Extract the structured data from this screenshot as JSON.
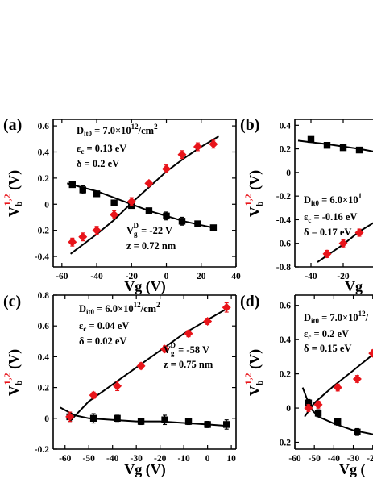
{
  "chart_data": [
    {
      "panel": "(a)",
      "type": "scatter",
      "xlabel": "Vg (V)",
      "ylabel": "V_b^{1,2} (V)",
      "xlim": [
        -65,
        40
      ],
      "ylim": [
        -0.48,
        0.65
      ],
      "xticks": [
        -60,
        -40,
        -20,
        0,
        20,
        40
      ],
      "yticks": [
        -0.4,
        -0.2,
        0.0,
        0.2,
        0.4,
        0.6
      ],
      "annotations": [
        {
          "text": "D_it0 = 7.0×10^12/cm^2"
        },
        {
          "text": "ε_c = 0.13 eV"
        },
        {
          "text": "δ = 0.2 eV"
        },
        {
          "text": "V_g^D = -22 V"
        },
        {
          "text": "z = 0.72 nm"
        }
      ],
      "series": [
        {
          "marker": "square",
          "color": "#000000",
          "x": [
            -54,
            -48,
            -40,
            -30,
            -20,
            -10,
            0,
            9,
            18,
            27
          ],
          "y": [
            0.15,
            0.11,
            0.08,
            0.01,
            -0.01,
            -0.05,
            -0.09,
            -0.13,
            -0.15,
            -0.18
          ],
          "err": [
            0.02,
            0.03,
            0.02,
            0.02,
            0.02,
            0.02,
            0.03,
            0.03,
            0.02,
            0.02
          ]
        },
        {
          "marker": "diamond",
          "color": "#e8141a",
          "x": [
            -54,
            -48,
            -40,
            -30,
            -20,
            -10,
            0,
            9,
            18,
            27
          ],
          "y": [
            -0.29,
            -0.25,
            -0.2,
            -0.08,
            0.02,
            0.16,
            0.27,
            0.38,
            0.44,
            0.46
          ],
          "err": [
            0.03,
            0.03,
            0.03,
            0.03,
            0.03,
            0.02,
            0.03,
            0.03,
            0.03,
            0.03
          ]
        }
      ],
      "fits": [
        {
          "x": [
            -57,
            -40,
            -30,
            -20,
            -10,
            0,
            10,
            20,
            27
          ],
          "y": [
            0.16,
            0.1,
            0.05,
            0.0,
            -0.05,
            -0.09,
            -0.13,
            -0.16,
            -0.18
          ]
        },
        {
          "x": [
            -55,
            -40,
            -30,
            -20,
            -10,
            0,
            10,
            20,
            30
          ],
          "y": [
            -0.38,
            -0.23,
            -0.12,
            0.01,
            0.13,
            0.25,
            0.35,
            0.44,
            0.52
          ]
        }
      ]
    },
    {
      "panel": "(b)",
      "type": "scatter",
      "xlabel": "Vg",
      "ylabel": "V_b^{1,2} (V)",
      "xlim": [
        -50,
        2
      ],
      "ylim": [
        -0.8,
        0.45
      ],
      "xticks": [
        -40,
        -20
      ],
      "yticks": [
        -0.8,
        -0.6,
        -0.4,
        -0.2,
        0.0,
        0.2,
        0.4
      ],
      "annotations": [
        {
          "text": "D_it0 = 6.0×10^1"
        },
        {
          "text": "ε_c = -0.16 eV"
        },
        {
          "text": "δ = 0.17 eV"
        }
      ],
      "series": [
        {
          "marker": "square",
          "color": "#000000",
          "x": [
            -40,
            -30,
            -20,
            -10
          ],
          "y": [
            0.28,
            0.23,
            0.21,
            0.19
          ],
          "err": [
            0.02,
            0.02,
            0.02,
            0.02
          ]
        },
        {
          "marker": "diamond",
          "color": "#e8141a",
          "x": [
            -30,
            -20,
            -10
          ],
          "y": [
            -0.69,
            -0.6,
            -0.51
          ],
          "err": [
            0.03,
            0.03,
            0.03
          ]
        }
      ],
      "fits": [
        {
          "x": [
            -48,
            -30,
            -10,
            2
          ],
          "y": [
            0.27,
            0.24,
            0.2,
            0.17
          ]
        },
        {
          "x": [
            -36,
            -20,
            -10,
            2
          ],
          "y": [
            -0.76,
            -0.61,
            -0.5,
            -0.4
          ]
        }
      ]
    },
    {
      "panel": "(c)",
      "type": "scatter",
      "xlabel": "Vg (V)",
      "ylabel": "V_b^{1,2} (V)",
      "xlim": [
        -65,
        12
      ],
      "ylim": [
        -0.2,
        0.8
      ],
      "xticks": [
        -60,
        -50,
        -40,
        -30,
        -20,
        -10,
        0,
        10
      ],
      "yticks": [
        -0.2,
        0.0,
        0.2,
        0.4,
        0.6,
        0.8
      ],
      "annotations": [
        {
          "text": "D_it0 = 6.0×10^12/cm^2"
        },
        {
          "text": "ε_c = 0.04 eV"
        },
        {
          "text": "δ = 0.02 eV"
        },
        {
          "text": "V_g^D = -58 V"
        },
        {
          "text": "z = 0.75 nm"
        }
      ],
      "series": [
        {
          "marker": "square",
          "color": "#000000",
          "x": [
            -58,
            -48,
            -38,
            -28,
            -18,
            -8,
            0,
            8
          ],
          "y": [
            0.01,
            0.0,
            0.0,
            -0.02,
            -0.01,
            -0.02,
            -0.04,
            -0.04
          ],
          "err": [
            0.03,
            0.03,
            0.02,
            0.02,
            0.03,
            0.02,
            0.02,
            0.03
          ]
        },
        {
          "marker": "diamond",
          "color": "#e8141a",
          "x": [
            -58,
            -48,
            -38,
            -28,
            -18,
            -8,
            0,
            8
          ],
          "y": [
            0.01,
            0.15,
            0.21,
            0.34,
            0.45,
            0.55,
            0.63,
            0.72
          ],
          "err": [
            0.03,
            0.02,
            0.03,
            0.02,
            0.02,
            0.02,
            0.02,
            0.03
          ]
        }
      ],
      "fits": [
        {
          "x": [
            -62,
            -56,
            -50,
            -40,
            -30,
            -20,
            -10,
            0,
            9
          ],
          "y": [
            0.07,
            0.02,
            0.0,
            -0.01,
            -0.02,
            -0.02,
            -0.03,
            -0.04,
            -0.05
          ]
        },
        {
          "x": [
            -58,
            -50,
            -40,
            -30,
            -20,
            -10,
            0,
            9
          ],
          "y": [
            -0.02,
            0.11,
            0.22,
            0.33,
            0.44,
            0.55,
            0.64,
            0.72
          ]
        }
      ]
    },
    {
      "panel": "(d)",
      "type": "scatter",
      "xlabel": "Vg (",
      "ylabel": "V_b^{1,2} (V)",
      "xlim": [
        -60,
        -17
      ],
      "ylim": [
        -0.24,
        0.66
      ],
      "xticks": [
        -60,
        -50,
        -40,
        -30,
        -20
      ],
      "yticks": [
        -0.2,
        0.0,
        0.2,
        0.4,
        0.6
      ],
      "annotations": [
        {
          "text": "D_it0 = 7.0×10^12/"
        },
        {
          "text": "ε_c = 0.2 eV"
        },
        {
          "text": "δ = 0.15 eV"
        }
      ],
      "series": [
        {
          "marker": "square",
          "color": "#000000",
          "x": [
            -53,
            -48,
            -38,
            -28,
            -18
          ],
          "y": [
            0.03,
            -0.03,
            -0.08,
            -0.14,
            -0.15
          ],
          "err": [
            0.02,
            0.02,
            0.02,
            0.02,
            0.02
          ]
        },
        {
          "marker": "diamond",
          "color": "#e8141a",
          "x": [
            -53,
            -48,
            -38,
            -28,
            -20
          ],
          "y": [
            0.0,
            0.02,
            0.12,
            0.17,
            0.32
          ],
          "err": [
            0.02,
            0.02,
            0.02,
            0.02,
            0.02
          ]
        }
      ],
      "fits": [
        {
          "x": [
            -56,
            -52,
            -48,
            -40,
            -30,
            -17
          ],
          "y": [
            0.12,
            0.0,
            -0.05,
            -0.09,
            -0.13,
            -0.16
          ]
        },
        {
          "x": [
            -55,
            -50,
            -40,
            -30,
            -17
          ],
          "y": [
            -0.05,
            0.03,
            0.13,
            0.22,
            0.34
          ]
        }
      ]
    }
  ]
}
